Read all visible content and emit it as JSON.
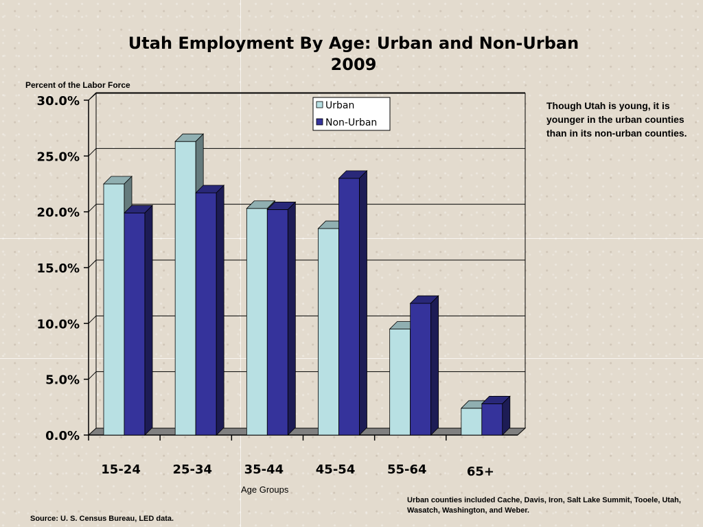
{
  "title_line1": "Utah Employment By Age: Urban and Non-Urban",
  "title_line2": "2009",
  "note": "Though Utah is young, it is younger in the urban counties than in its non-urban counties.",
  "counties_note": "Urban counties included Cache, Davis, Iron, Salt Lake Summit, Tooele, Utah, Wasatch, Washington, and Weber.",
  "source": "Source: U. S. Census Bureau, LED data.",
  "chart_data": {
    "type": "bar",
    "title": "Utah Employment By Age: Urban and Non-Urban 2009",
    "xlabel": "Age Groups",
    "ylabel": "Percent of the Labor Force",
    "categories": [
      "15-24",
      "25-34",
      "35-44",
      "45-54",
      "55-64",
      "65+"
    ],
    "series": [
      {
        "name": "Urban",
        "color": "#b8e0e3",
        "values": [
          22.5,
          26.3,
          20.3,
          18.5,
          9.5,
          2.4
        ]
      },
      {
        "name": "Non-Urban",
        "color": "#35339b",
        "values": [
          19.9,
          21.7,
          20.2,
          23.0,
          11.8,
          2.8
        ]
      }
    ],
    "ylim": [
      0,
      30
    ],
    "yticks": [
      "0.0%",
      "5.0%",
      "10.0%",
      "15.0%",
      "20.0%",
      "25.0%",
      "30.0%"
    ],
    "grid": true,
    "legend": "top-center"
  }
}
